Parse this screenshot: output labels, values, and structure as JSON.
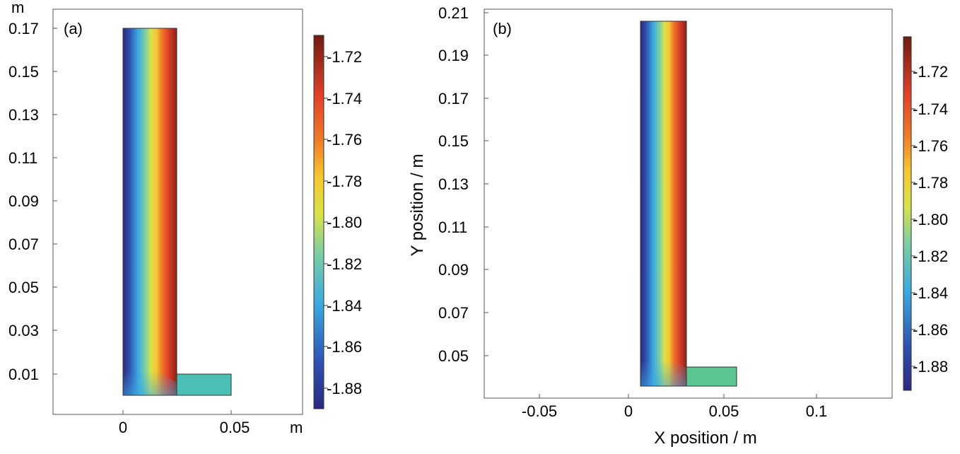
{
  "chart_data": [
    {
      "type": "heatmap",
      "panel_label": "(a)",
      "xlabel": "",
      "ylabel": "",
      "x_unit": "m",
      "y_unit": "m",
      "xlim": [
        -0.037,
        0.087
      ],
      "ylim": [
        -0.0094,
        0.1796
      ],
      "x_ticks": [
        0,
        0.05
      ],
      "x_tick_labels": [
        "0",
        "0.05"
      ],
      "y_ticks": [
        0.01,
        0.03,
        0.05,
        0.07,
        0.09,
        0.11,
        0.13,
        0.15,
        0.17
      ],
      "y_tick_labels": [
        "0.01",
        "0.03",
        "0.05",
        "0.07",
        "0.09",
        "0.11",
        "0.13",
        "0.15",
        "0.17"
      ],
      "geometry": {
        "column": {
          "x": [
            0,
            0.025
          ],
          "y": [
            0,
            0.17
          ]
        },
        "foot": {
          "x": [
            0.025,
            0.05
          ],
          "y": [
            0,
            0.01
          ]
        },
        "foot_value": -1.82
      },
      "field_description": "value increases from left edge (about -1.89) to right edge (about -1.71) of the column",
      "colorbar": {
        "range": [
          -1.89,
          -1.71
        ],
        "ticks": [
          -1.72,
          -1.74,
          -1.76,
          -1.78,
          -1.8,
          -1.82,
          -1.84,
          -1.86,
          -1.88
        ],
        "tick_labels": [
          "-1.72",
          "-1.74",
          "-1.76",
          "-1.78",
          "-1.80",
          "-1.82",
          "-1.84",
          "-1.86",
          "-1.88"
        ]
      }
    },
    {
      "type": "heatmap",
      "panel_label": "(b)",
      "xlabel": "X position / m",
      "ylabel": "Y position / m",
      "xlim": [
        -0.075,
        0.14
      ],
      "ylim": [
        0.026,
        0.21
      ],
      "x_ticks": [
        -0.05,
        0,
        0.05,
        0.1
      ],
      "x_tick_labels": [
        "-0.05",
        "0",
        "0.05",
        "0.1"
      ],
      "y_ticks": [
        0.05,
        0.07,
        0.09,
        0.11,
        0.13,
        0.15,
        0.17,
        0.19,
        0.21
      ],
      "y_tick_labels": [
        "0.05",
        "0.07",
        "0.09",
        "0.11",
        "0.13",
        "0.15",
        "0.17",
        "0.19",
        "0.21"
      ],
      "geometry": {
        "column": {
          "x": [
            0.006,
            0.03
          ],
          "y": [
            0.0356,
            0.2056
          ]
        },
        "foot": {
          "x": [
            0.03,
            0.056
          ],
          "y": [
            0.0356,
            0.0446
          ]
        },
        "foot_value": -1.8
      },
      "field_description": "value increases from left edge (about -1.89) to right edge (about -1.71) of the column",
      "colorbar": {
        "range": [
          -1.895,
          -1.7
        ],
        "ticks": [
          -1.72,
          -1.74,
          -1.76,
          -1.78,
          -1.8,
          -1.82,
          -1.84,
          -1.86,
          -1.88
        ],
        "tick_labels": [
          "-1.72",
          "-1.74",
          "-1.76",
          "-1.78",
          "-1.80",
          "-1.82",
          "-1.84",
          "-1.86",
          "-1.88"
        ]
      }
    }
  ]
}
